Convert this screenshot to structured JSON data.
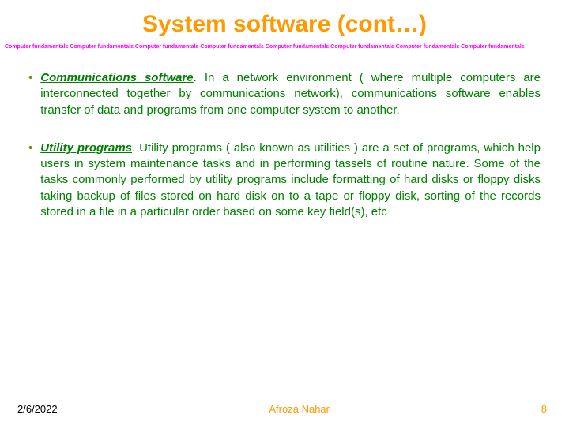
{
  "title": {
    "text": "System software (cont…)",
    "color": "#ff9900",
    "fontsize": 30
  },
  "repeat_banner": {
    "phrase": "Computer fundamentals",
    "repeat_count": 8,
    "color": "#ff00ff",
    "fontsize": 7
  },
  "bullets": [
    {
      "marker": "•",
      "title": "Communications software",
      "title_terminator": ".",
      "body": " In a network environment ( where multiple computers are interconnected together by communications network), communications software enables transfer of data and programs from one computer system to another."
    },
    {
      "marker": "•",
      "title": "Utility programs",
      "title_terminator": ".",
      "body": " Utility programs ( also known as utilities ) are a set of programs, which help users in system maintenance tasks and in performing tassels of routine nature. Some of the tasks commonly performed by utility programs include formatting of hard disks or floppy disks taking backup of files stored on hard disk on to a tape or floppy disk, sorting of the records stored in a file in a particular order based on some key field(s), etc"
    }
  ],
  "body_style": {
    "color": "#008000",
    "marker_color": "#808000",
    "fontsize": 15
  },
  "footer": {
    "date": "2/6/2022",
    "author": "Afroza Nahar",
    "page": "8",
    "date_color": "#000000",
    "author_color": "#ff9900",
    "page_color": "#ff9900",
    "fontsize": 13
  }
}
